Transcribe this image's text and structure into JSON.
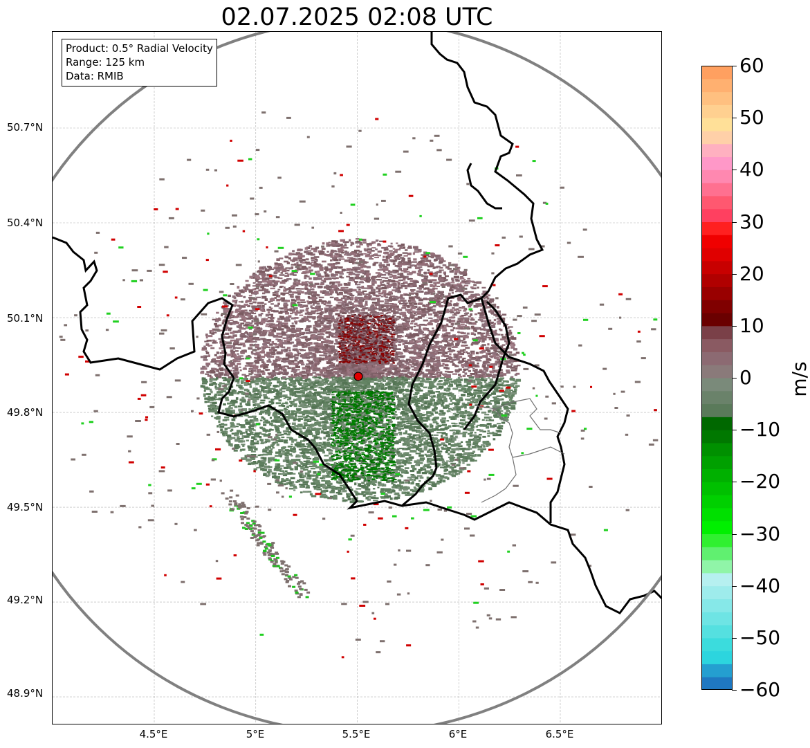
{
  "title": "02.07.2025 02:08 UTC",
  "info": {
    "product": "Product: 0.5° Radial Velocity",
    "range": "Range: 125 km",
    "data": "Data: RMIB"
  },
  "latitude_labels": [
    "50.7°N",
    "50.4°N",
    "50.1°N",
    "49.8°N",
    "49.5°N",
    "49.2°N",
    "48.9°N"
  ],
  "longitude_labels": [
    "4.5°E",
    "5°E",
    "5.5°E",
    "6°E",
    "6.5°E"
  ],
  "colorbar": {
    "unit": "m/s",
    "min": -60,
    "max": 60,
    "tick_labels": [
      "60",
      "50",
      "40",
      "30",
      "20",
      "10",
      "0",
      "−10",
      "−20",
      "−30",
      "−40",
      "−50",
      "−60"
    ],
    "colors_bottom_to_top": [
      "#1f78c1",
      "#249fd0",
      "#2cd5de",
      "#3bdcdd",
      "#55e0e0",
      "#6ee4e4",
      "#86e8e8",
      "#9eecec",
      "#b6f0f0",
      "#90f5a8",
      "#60f070",
      "#30f030",
      "#00f000",
      "#00e000",
      "#00d000",
      "#00c000",
      "#00b000",
      "#00a000",
      "#009000",
      "#007800",
      "#006800",
      "#5a7a5a",
      "#6a826a",
      "#7a8a7a",
      "#8a7a7a",
      "#8c6a72",
      "#8a5a62",
      "#7a4048",
      "#6a0000",
      "#800000",
      "#990000",
      "#b00000",
      "#c80000",
      "#e00000",
      "#f00000",
      "#ff2020",
      "#ff4060",
      "#ff5870",
      "#ff7090",
      "#ff88b0",
      "#ff98c8",
      "#ffb0c0",
      "#ffd0a8",
      "#ffe098",
      "#ffd090",
      "#ffc080",
      "#ffb070",
      "#ffa060"
    ]
  },
  "radar_site": {
    "lon": 5.505,
    "lat": 49.914
  },
  "range_ring_color": "#808080"
}
